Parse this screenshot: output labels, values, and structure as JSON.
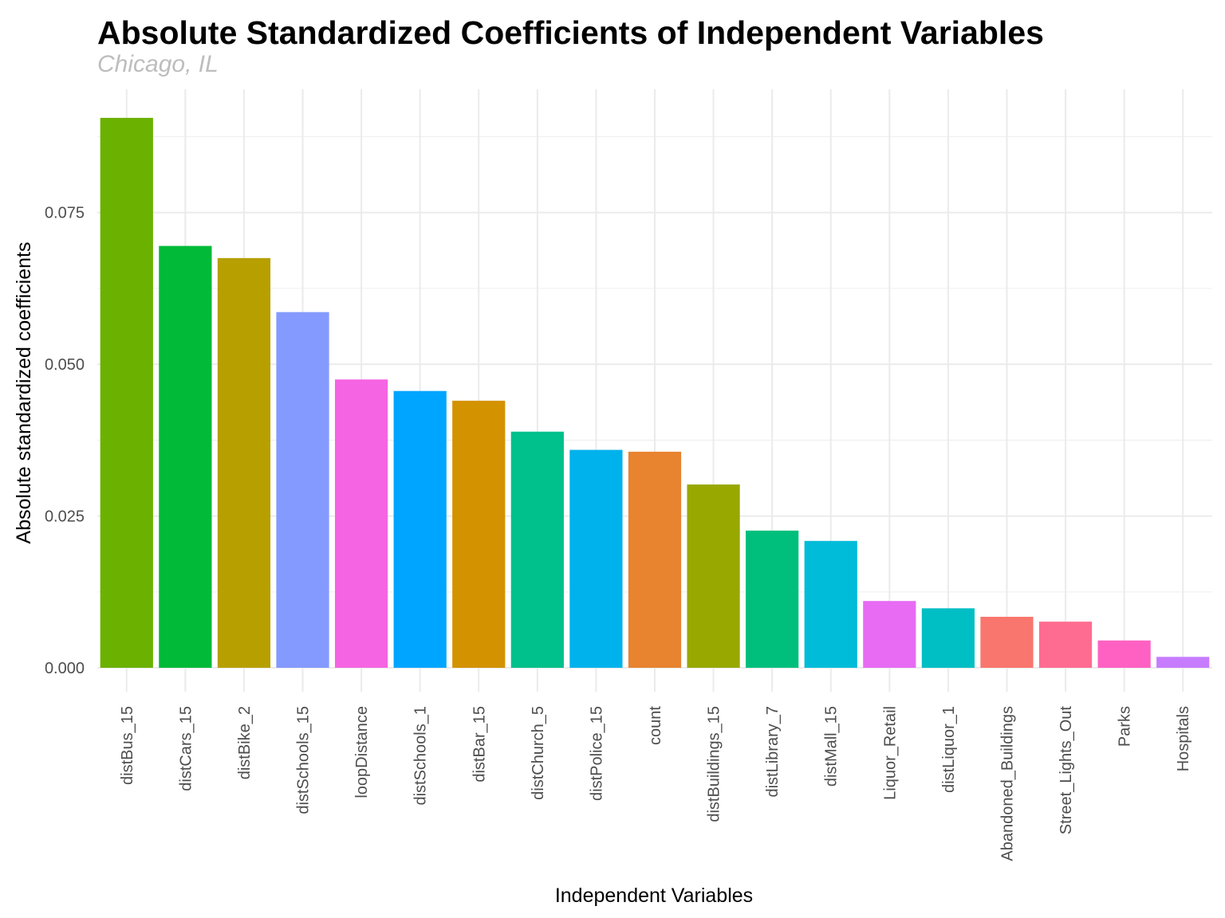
{
  "chart_data": {
    "type": "bar",
    "title": "Absolute Standardized Coefficients of Independent Variables",
    "subtitle": "Chicago, IL",
    "xlabel": "Independent Variables",
    "ylabel": "Absolute standardized coefficients",
    "ylim": [
      -0.004,
      0.091
    ],
    "yticks": [
      0.0,
      0.025,
      0.05,
      0.075
    ],
    "ytick_labels": [
      "0.000",
      "0.025",
      "0.050",
      "0.075"
    ],
    "grid": true,
    "legend": "none",
    "categories": [
      "distBus_15",
      "distCars_15",
      "distBike_2",
      "distSchools_15",
      "loopDistance",
      "distSchools_1",
      "distBar_15",
      "distChurch_5",
      "distPolice_15",
      "count",
      "distBuildings_15",
      "distLibrary_7",
      "distMall_15",
      "Liquor_Retail",
      "distLiquor_1",
      "Abandoned_Buildings",
      "Street_Lights_Out",
      "Parks",
      "Hospitals"
    ],
    "values": [
      0.0906,
      0.0695,
      0.0675,
      0.0586,
      0.0475,
      0.0456,
      0.044,
      0.0389,
      0.0359,
      0.0356,
      0.0302,
      0.0226,
      0.0209,
      0.011,
      0.0098,
      0.0084,
      0.0076,
      0.0045,
      0.0018
    ],
    "colors": [
      "#6BB100",
      "#00BA38",
      "#B79F00",
      "#849AFF",
      "#F564E3",
      "#00A5FF",
      "#D39200",
      "#00C08B",
      "#00B2EC",
      "#E8832F",
      "#99A800",
      "#00BF7D",
      "#00BCD8",
      "#E76BF3",
      "#00BFC4",
      "#F8766D",
      "#FF6C91",
      "#FF61C3",
      "#C77CFF"
    ]
  }
}
